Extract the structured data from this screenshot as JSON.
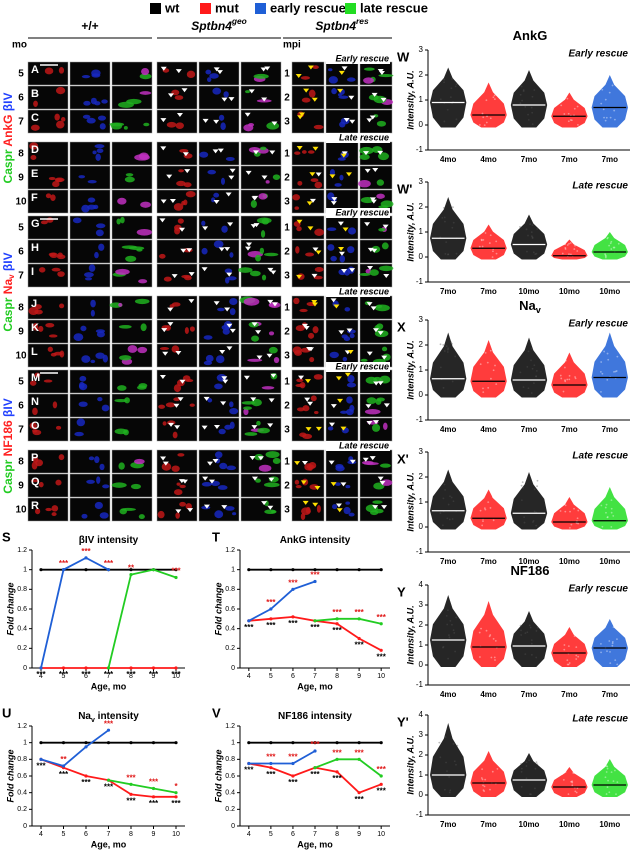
{
  "legend": [
    {
      "label": "wt",
      "color": "#000000"
    },
    {
      "label": "mut",
      "color": "#ff1a1a"
    },
    {
      "label": "early rescue",
      "color": "#1f5fd6"
    },
    {
      "label": "late rescue",
      "color": "#22dd22"
    }
  ],
  "columns": [
    {
      "main": "+/+"
    },
    {
      "main": "Sptbn4",
      "sup": "geo"
    },
    {
      "main": "Sptbn4",
      "sup": "res"
    }
  ],
  "axis_labels": {
    "left": "mo",
    "right": "mpi"
  },
  "image_groups": [
    {
      "stain": [
        {
          "text": "Caspr",
          "color": "#22cc22"
        },
        {
          "text": "AnkG",
          "color": "#ff2020"
        },
        {
          "text": "βIV",
          "color": "#2040ff"
        }
      ],
      "letters": [
        "A",
        "B",
        "C",
        "D",
        "E",
        "F"
      ],
      "ages": [
        5,
        6,
        7,
        8,
        9,
        10
      ],
      "mpi": [
        1,
        2,
        3,
        1,
        2,
        3
      ],
      "labels": [
        "Early rescue",
        "Late rescue"
      ]
    },
    {
      "stain": [
        {
          "text": "Caspr",
          "color": "#22cc22"
        },
        {
          "text": "Na",
          "sub": "v",
          "color": "#ff2020"
        },
        {
          "text": "βIV",
          "color": "#2040ff"
        }
      ],
      "letters": [
        "G",
        "H",
        "I",
        "J",
        "K",
        "L"
      ],
      "ages": [
        5,
        6,
        7,
        8,
        9,
        10
      ],
      "mpi": [
        1,
        2,
        3,
        1,
        2,
        3
      ],
      "labels": [
        "Early rescue",
        "Late rescue"
      ]
    },
    {
      "stain": [
        {
          "text": "Caspr",
          "color": "#22cc22"
        },
        {
          "text": "NF186",
          "color": "#ff2020"
        },
        {
          "text": "βIV",
          "color": "#2040ff"
        }
      ],
      "letters": [
        "M",
        "N",
        "O",
        "P",
        "Q",
        "R"
      ],
      "ages": [
        5,
        6,
        7,
        8,
        9,
        10
      ],
      "mpi": [
        1,
        2,
        3,
        1,
        2,
        3
      ],
      "labels": [
        "Early rescue",
        "Late rescue"
      ]
    }
  ],
  "line_charts": [
    {
      "type": "line",
      "letter": "S",
      "title": {
        "main": "βIV intensity"
      },
      "xlabel": "Age, mo",
      "ylabel": "Fold change",
      "x": [
        4,
        5,
        6,
        7,
        8,
        9,
        10
      ],
      "xlim": [
        3.6,
        10.4
      ],
      "xticks": [
        4,
        5,
        6,
        7,
        8,
        9,
        10
      ],
      "ylim": [
        0,
        1.2
      ],
      "yticks": [
        0,
        0.2,
        0.4,
        0.6,
        0.8,
        1,
        1.2
      ],
      "series": [
        {
          "color": "#000000",
          "values": [
            1,
            1,
            1,
            1,
            1,
            1,
            1
          ],
          "stars": [
            null,
            null,
            null,
            null,
            null,
            null,
            null
          ]
        },
        {
          "color": "#ff1a1a",
          "values": [
            0,
            0,
            0,
            0,
            0,
            0,
            0
          ],
          "stars": [
            "***",
            "***",
            "***",
            "***",
            "***",
            "***",
            "***"
          ]
        },
        {
          "color": "#1f5fd6",
          "values": [
            0,
            1.0,
            1.12,
            1.0,
            null,
            null,
            null
          ],
          "stars": [
            null,
            "***",
            "***",
            "***",
            null,
            null,
            null
          ]
        },
        {
          "color": "#22cc22",
          "values": [
            null,
            null,
            null,
            0,
            0.95,
            1.0,
            0.92
          ],
          "stars": [
            null,
            null,
            null,
            null,
            "**",
            null,
            "***"
          ]
        }
      ]
    },
    {
      "type": "line",
      "letter": "T",
      "title": {
        "main": "AnkG intensity"
      },
      "xlabel": "Age, mo",
      "ylabel": "Fold change",
      "x": [
        4,
        5,
        6,
        7,
        8,
        9,
        10
      ],
      "xlim": [
        3.6,
        10.4
      ],
      "xticks": [
        4,
        5,
        6,
        7,
        8,
        9,
        10
      ],
      "ylim": [
        0,
        1.2
      ],
      "yticks": [
        0,
        0.2,
        0.4,
        0.6,
        0.8,
        1,
        1.2
      ],
      "series": [
        {
          "color": "#000000",
          "values": [
            1,
            1,
            1,
            1,
            1,
            1,
            1
          ],
          "stars": [
            null,
            null,
            null,
            null,
            null,
            null,
            null
          ]
        },
        {
          "color": "#ff1a1a",
          "values": [
            0.48,
            0.5,
            0.52,
            0.48,
            0.45,
            0.3,
            0.18
          ],
          "stars": [
            "***",
            "***",
            "***",
            "***",
            "***",
            "***",
            "***"
          ]
        },
        {
          "color": "#1f5fd6",
          "values": [
            0.48,
            0.6,
            0.8,
            0.88,
            null,
            null,
            null
          ],
          "stars": [
            null,
            "***",
            "***",
            "***",
            null,
            null,
            null
          ]
        },
        {
          "color": "#22cc22",
          "values": [
            null,
            null,
            null,
            0.48,
            0.5,
            0.5,
            0.45
          ],
          "stars": [
            null,
            null,
            null,
            null,
            "***",
            "***",
            "***"
          ]
        }
      ]
    },
    {
      "type": "line",
      "letter": "U",
      "title": {
        "main": "Na",
        "sub": "v",
        "rest": " intensity"
      },
      "xlabel": "Age, mo",
      "ylabel": "Fold change",
      "x": [
        4,
        5,
        6,
        7,
        8,
        9,
        10
      ],
      "xlim": [
        3.6,
        10.4
      ],
      "xticks": [
        4,
        5,
        6,
        7,
        8,
        9,
        10
      ],
      "ylim": [
        0,
        1.2
      ],
      "yticks": [
        0,
        0.2,
        0.4,
        0.6,
        0.8,
        1,
        1.2
      ],
      "series": [
        {
          "color": "#000000",
          "values": [
            1,
            1,
            1,
            1,
            1,
            1,
            1
          ],
          "stars": [
            null,
            null,
            null,
            null,
            null,
            null,
            null
          ]
        },
        {
          "color": "#ff1a1a",
          "values": [
            0.8,
            0.7,
            0.6,
            0.55,
            0.38,
            0.35,
            0.35
          ],
          "stars": [
            "***",
            "***",
            "***",
            "***",
            "***",
            "***",
            "***"
          ]
        },
        {
          "color": "#1f5fd6",
          "values": [
            0.8,
            0.72,
            0.95,
            1.15,
            null,
            null,
            null
          ],
          "stars": [
            null,
            "**",
            null,
            "***",
            null,
            null,
            null
          ]
        },
        {
          "color": "#22cc22",
          "values": [
            null,
            null,
            null,
            0.55,
            0.5,
            0.45,
            0.4
          ],
          "stars": [
            null,
            null,
            null,
            null,
            "***",
            "***",
            "*"
          ]
        }
      ]
    },
    {
      "type": "line",
      "letter": "V",
      "title": {
        "main": "NF186 intensity"
      },
      "xlabel": "Age, mo",
      "ylabel": "Fold change",
      "x": [
        4,
        5,
        6,
        7,
        8,
        9,
        10
      ],
      "xlim": [
        3.6,
        10.4
      ],
      "xticks": [
        4,
        5,
        6,
        7,
        8,
        9,
        10
      ],
      "ylim": [
        0,
        1.2
      ],
      "yticks": [
        0,
        0.2,
        0.4,
        0.6,
        0.8,
        1,
        1.2
      ],
      "series": [
        {
          "color": "#000000",
          "values": [
            1,
            1,
            1,
            1,
            1,
            1,
            1
          ],
          "stars": [
            null,
            null,
            null,
            null,
            null,
            null,
            null
          ]
        },
        {
          "color": "#ff1a1a",
          "values": [
            0.75,
            0.7,
            0.6,
            0.7,
            0.65,
            0.4,
            0.5
          ],
          "stars": [
            "***",
            "***",
            "***",
            "***",
            "***",
            "***",
            "***"
          ]
        },
        {
          "color": "#1f5fd6",
          "values": [
            0.75,
            0.75,
            0.75,
            0.9,
            null,
            null,
            null
          ],
          "stars": [
            null,
            "***",
            "***",
            "***",
            null,
            null,
            null
          ]
        },
        {
          "color": "#22cc22",
          "values": [
            null,
            null,
            null,
            0.7,
            0.8,
            0.8,
            0.6
          ],
          "stars": [
            null,
            null,
            null,
            null,
            "***",
            "***",
            "***"
          ]
        }
      ]
    }
  ],
  "dot_plots": [
    {
      "type": "dot",
      "letter": "W",
      "title": {
        "main": "AnkG"
      },
      "subtitle": "Early rescue",
      "ylabel": "Intensity, A.U.",
      "ylim": [
        -1,
        3
      ],
      "yticks": [
        -1,
        0,
        1,
        2,
        3
      ],
      "categories": [
        "4mo",
        "4mo",
        "7mo",
        "7mo",
        "7mo"
      ],
      "colors": [
        "#000000",
        "#ff1a1a",
        "#000000",
        "#ff1a1a",
        "#1f5fd6"
      ],
      "min": [
        -0.1,
        -0.1,
        -0.1,
        -0.1,
        -0.1
      ],
      "median": [
        0.9,
        0.4,
        0.8,
        0.35,
        0.7
      ],
      "max": [
        2.3,
        1.7,
        2.2,
        1.3,
        2.0
      ]
    },
    {
      "type": "dot",
      "letter": "W'",
      "subtitle": "Late rescue",
      "ylabel": "Intensity, A.U.",
      "ylim": [
        -1,
        3
      ],
      "yticks": [
        -1,
        0,
        1,
        2,
        3
      ],
      "categories": [
        "7mo",
        "7mo",
        "10mo",
        "10mo",
        "10mo"
      ],
      "colors": [
        "#000000",
        "#ff1a1a",
        "#000000",
        "#ff1a1a",
        "#22dd22"
      ],
      "min": [
        -0.1,
        -0.1,
        -0.1,
        -0.1,
        -0.1
      ],
      "median": [
        0.75,
        0.35,
        0.5,
        0.05,
        0.2
      ],
      "max": [
        2.4,
        1.3,
        1.7,
        0.7,
        1.0
      ]
    },
    {
      "type": "dot",
      "letter": "X",
      "title": {
        "main": "Na",
        "sub": "v"
      },
      "subtitle": "Early rescue",
      "ylabel": "Intensity, A.U.",
      "ylim": [
        -1,
        3
      ],
      "yticks": [
        -1,
        0,
        1,
        2,
        3
      ],
      "categories": [
        "4mo",
        "4mo",
        "7mo",
        "7mo",
        "7mo"
      ],
      "colors": [
        "#000000",
        "#ff1a1a",
        "#000000",
        "#ff1a1a",
        "#1f5fd6"
      ],
      "min": [
        -0.1,
        -0.1,
        -0.1,
        -0.1,
        -0.1
      ],
      "median": [
        0.65,
        0.55,
        0.6,
        0.4,
        0.7
      ],
      "max": [
        2.5,
        2.2,
        2.3,
        1.7,
        2.5
      ]
    },
    {
      "type": "dot",
      "letter": "X'",
      "subtitle": "Late rescue",
      "ylabel": "Intensity, A.U.",
      "ylim": [
        -1,
        3
      ],
      "yticks": [
        -1,
        0,
        1,
        2,
        3
      ],
      "categories": [
        "7mo",
        "7mo",
        "10mo",
        "10mo",
        "10mo"
      ],
      "colors": [
        "#000000",
        "#ff1a1a",
        "#000000",
        "#ff1a1a",
        "#22dd22"
      ],
      "min": [
        -0.1,
        -0.1,
        -0.1,
        -0.1,
        -0.1
      ],
      "median": [
        0.65,
        0.35,
        0.55,
        0.2,
        0.25
      ],
      "max": [
        2.3,
        1.5,
        2.2,
        1.2,
        1.6
      ]
    },
    {
      "type": "dot",
      "letter": "Y",
      "title": {
        "main": "NF186"
      },
      "subtitle": "Early rescue",
      "ylabel": "Intensity, A.U.",
      "ylim": [
        -1,
        4
      ],
      "yticks": [
        -1,
        0,
        1,
        2,
        3,
        4
      ],
      "categories": [
        "4mo",
        "4mo",
        "7mo",
        "7mo",
        "7mo"
      ],
      "colors": [
        "#000000",
        "#ff1a1a",
        "#000000",
        "#ff1a1a",
        "#1f5fd6"
      ],
      "min": [
        -0.1,
        -0.1,
        -0.1,
        -0.1,
        -0.1
      ],
      "median": [
        1.25,
        0.9,
        0.95,
        0.6,
        0.85
      ],
      "max": [
        3.5,
        3.2,
        2.7,
        1.9,
        2.3
      ]
    },
    {
      "type": "dot",
      "letter": "Y'",
      "subtitle": "Late rescue",
      "ylabel": "Intensity, A.U.",
      "ylim": [
        -1,
        4
      ],
      "yticks": [
        -1,
        0,
        1,
        2,
        3,
        4
      ],
      "categories": [
        "7mo",
        "7mo",
        "10mo",
        "10mo",
        "10mo"
      ],
      "colors": [
        "#000000",
        "#ff1a1a",
        "#000000",
        "#ff1a1a",
        "#22dd22"
      ],
      "min": [
        -0.1,
        -0.1,
        -0.1,
        -0.1,
        -0.1
      ],
      "median": [
        1.0,
        0.6,
        0.75,
        0.4,
        0.5
      ],
      "max": [
        3.6,
        2.2,
        2.1,
        1.4,
        1.8
      ]
    }
  ]
}
